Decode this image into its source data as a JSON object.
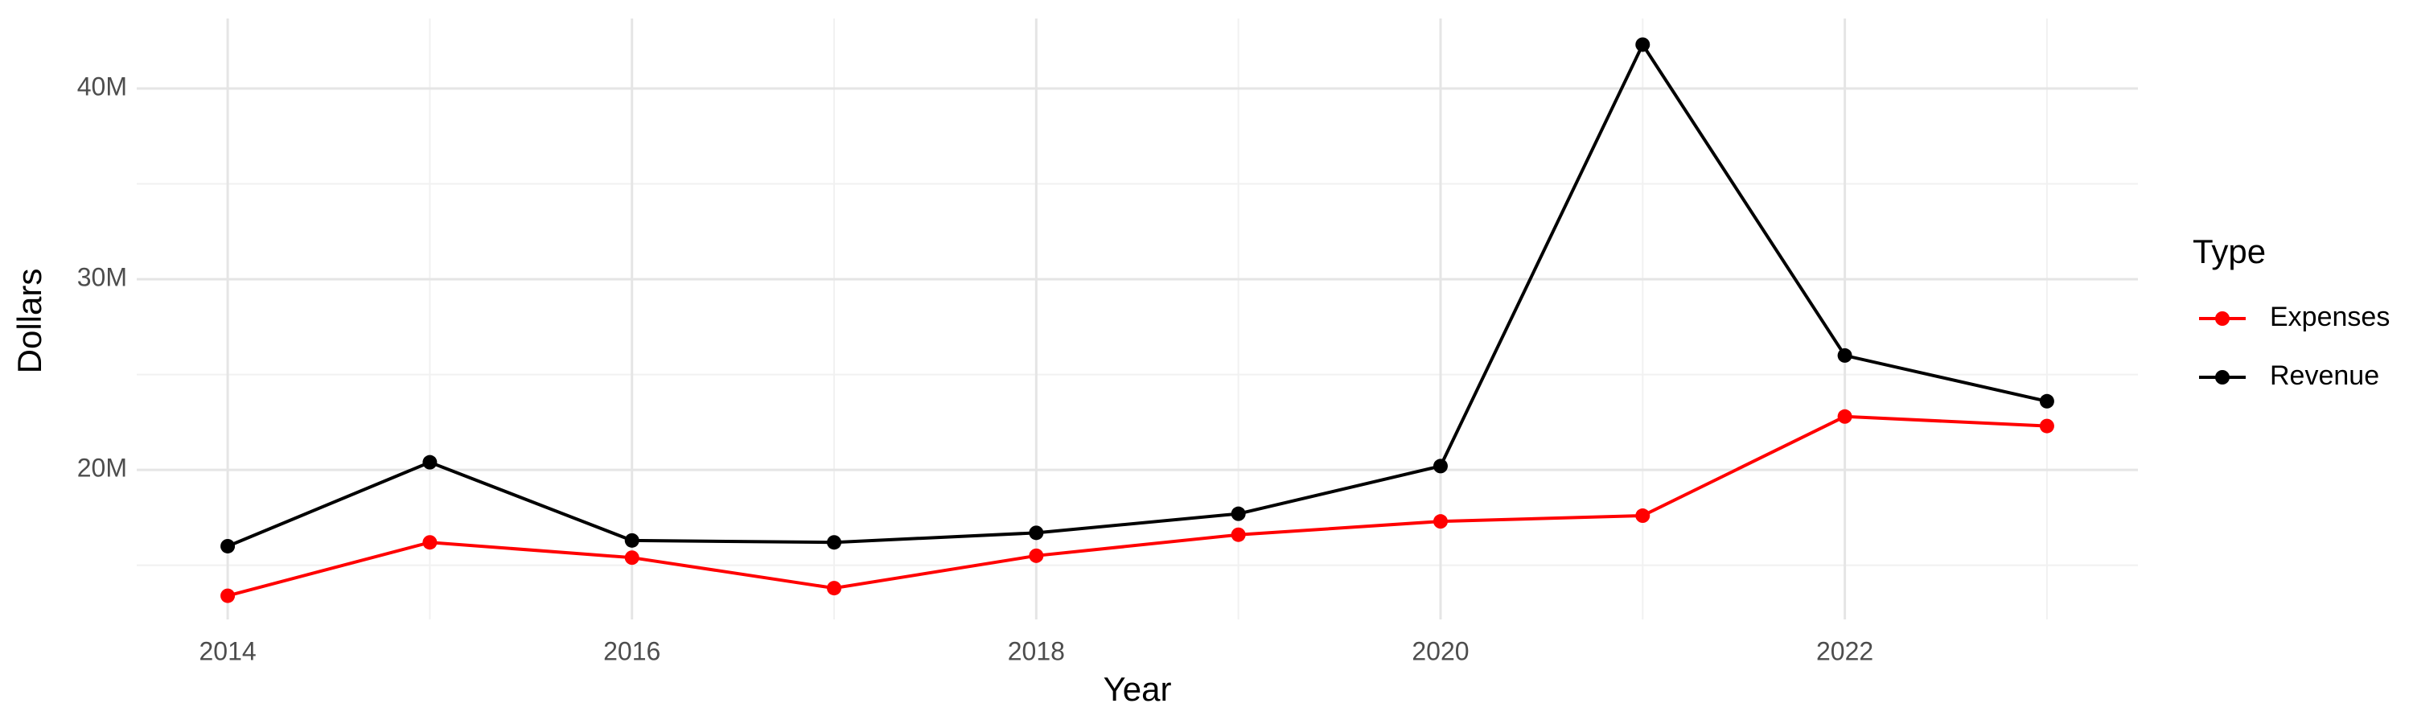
{
  "chart_data": {
    "type": "line",
    "x_label": "Year",
    "y_label": "Dollars",
    "x": [
      2014,
      2015,
      2016,
      2017,
      2018,
      2019,
      2020,
      2021,
      2022,
      2023
    ],
    "series": [
      {
        "name": "Expenses",
        "color": "#ff0000",
        "values": [
          13400000,
          16200000,
          15400000,
          13800000,
          15500000,
          16600000,
          17300000,
          17600000,
          22800000,
          22300000
        ]
      },
      {
        "name": "Revenue",
        "color": "#000000",
        "values": [
          16000000,
          20400000,
          16300000,
          16200000,
          16700000,
          17700000,
          20200000,
          42300000,
          26000000,
          23600000
        ]
      }
    ],
    "xlim": [
      2013.55,
      2023.45
    ],
    "xticks": [
      2014,
      2016,
      2018,
      2020,
      2022
    ],
    "minor_xticks": [
      2015,
      2017,
      2019,
      2021,
      2023
    ],
    "ylim": [
      12160000,
      43670000
    ],
    "yticks": [
      {
        "value": 20000000,
        "label": "20M"
      },
      {
        "value": 30000000,
        "label": "30M"
      },
      {
        "value": 40000000,
        "label": "40M"
      }
    ],
    "minor_yticks": [
      15000000,
      25000000,
      35000000
    ],
    "grid": true,
    "legend_title": "Type",
    "legend_position": "right"
  }
}
